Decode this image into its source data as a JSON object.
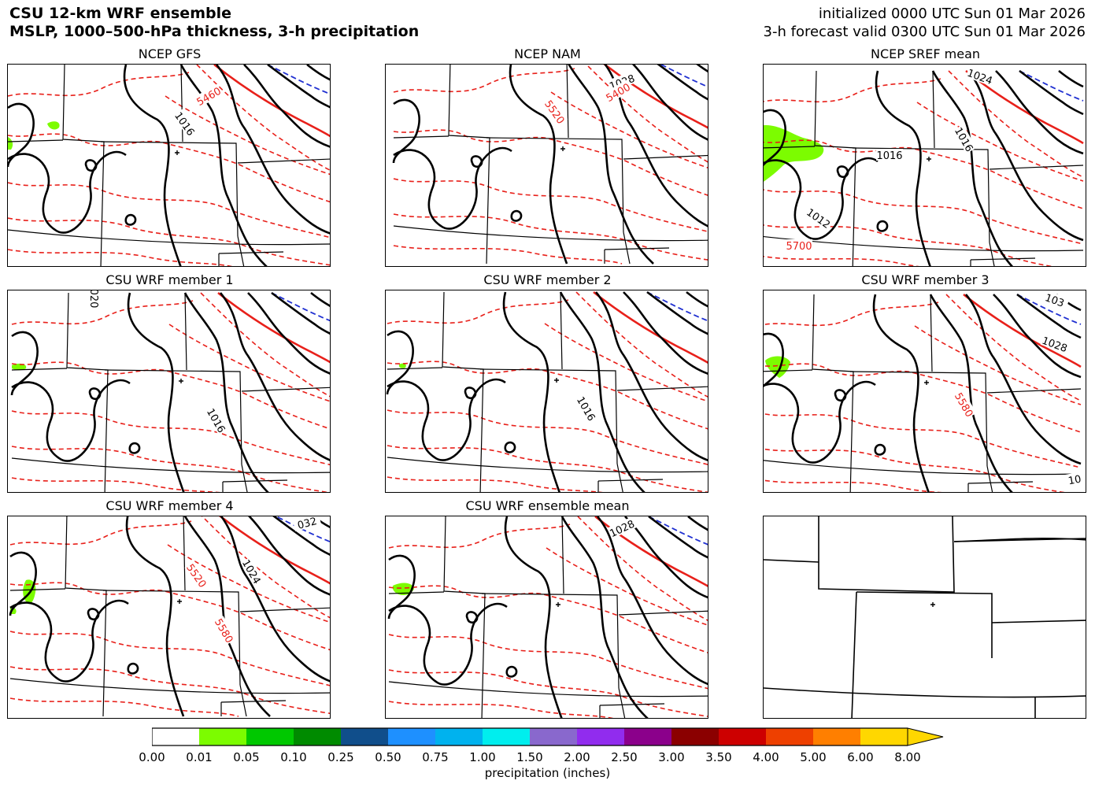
{
  "header": {
    "title_line1": "CSU 12-km WRF ensemble",
    "title_line2": "MSLP, 1000–500-hPa thickness, 3-h precipitation",
    "init_line": "initialized 0000 UTC Sun 01 Mar 2026",
    "valid_line": "3-h forecast valid 0300 UTC Sun 01 Mar 2026"
  },
  "colors": {
    "mslp": "#000000",
    "thickness_dashed": "#e8201a",
    "thickness_5400": "#e8201a",
    "thickness_cold": "#1f2fd1",
    "precip_light": "#7cfc00"
  },
  "panels": [
    {
      "title": "NCEP GFS",
      "labels": [
        "5460",
        "1016"
      ]
    },
    {
      "title": "NCEP NAM",
      "labels": [
        "1028",
        "5400",
        "5520"
      ]
    },
    {
      "title": "NCEP SREF mean",
      "labels": [
        "1024",
        "1016",
        "1016",
        "1012",
        "5700"
      ]
    },
    {
      "title": "CSU WRF member 1",
      "labels": [
        "020",
        "1016"
      ]
    },
    {
      "title": "CSU WRF member 2",
      "labels": [
        "1016"
      ]
    },
    {
      "title": "CSU WRF member 3",
      "labels": [
        "103",
        "1028",
        "5580",
        "10"
      ]
    },
    {
      "title": "CSU WRF member 4",
      "labels": [
        "032",
        "5520",
        "1024",
        "5580"
      ]
    },
    {
      "title": "CSU WRF ensemble mean",
      "labels": [
        "1028"
      ]
    },
    {
      "title": "",
      "labels": []
    }
  ],
  "colorbar": {
    "label": "precipitation (inches)",
    "ticks": [
      "0.00",
      "0.01",
      "0.05",
      "0.10",
      "0.25",
      "0.50",
      "0.75",
      "1.00",
      "1.50",
      "2.00",
      "2.50",
      "3.00",
      "3.50",
      "4.00",
      "5.00",
      "6.00",
      "8.00"
    ],
    "colors": [
      "#ffffff",
      "#7cfc00",
      "#00c800",
      "#008b00",
      "#104e8b",
      "#1e90ff",
      "#00b2ee",
      "#00eeee",
      "#8968cd",
      "#912cee",
      "#8b008b",
      "#8b0000",
      "#cd0000",
      "#ee4000",
      "#ff7f00",
      "#ffd700"
    ]
  }
}
